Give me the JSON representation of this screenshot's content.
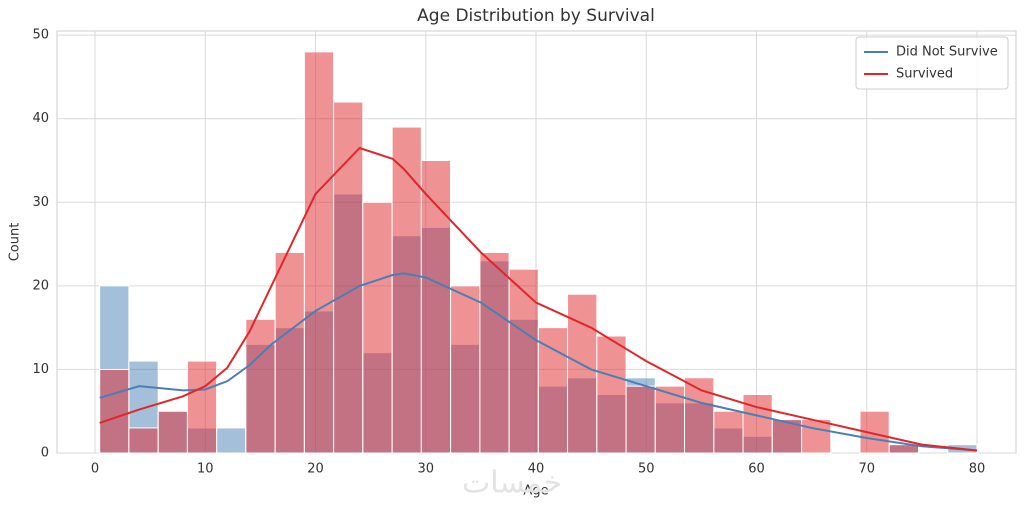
{
  "chart_data": {
    "type": "histogram",
    "title": "Age Distribution by Survival",
    "x_label": "Age",
    "y_label": "Count",
    "watermark": "خمسات",
    "bins": [
      0.42,
      3.07,
      5.73,
      8.38,
      11.03,
      13.68,
      16.34,
      18.99,
      21.64,
      24.29,
      26.95,
      29.6,
      32.25,
      34.91,
      37.56,
      40.21,
      42.86,
      45.52,
      48.17,
      50.82,
      53.47,
      56.13,
      58.78,
      61.43,
      64.09,
      66.74,
      69.39,
      72.04,
      74.7,
      77.35,
      80.0
    ],
    "kde_x": [
      0.42,
      4,
      8,
      10,
      12,
      14,
      16,
      20,
      24,
      27,
      28,
      30,
      35,
      40,
      45,
      50,
      55,
      60,
      65,
      70,
      75,
      80
    ],
    "series": [
      {
        "name": "Did Not Survive",
        "color": "#4a7fb5",
        "values": [
          20,
          11,
          5,
          3,
          3,
          13,
          15,
          17,
          31,
          12,
          26,
          27,
          13,
          23,
          16,
          8,
          9,
          7,
          9,
          6,
          6,
          3,
          2,
          4,
          0,
          0,
          0,
          1,
          0,
          1
        ],
        "kde": [
          6.6,
          8,
          7.5,
          7.6,
          8.6,
          10.5,
          13,
          17,
          20,
          21.3,
          21.5,
          21,
          18,
          13.5,
          10,
          8,
          6,
          4.5,
          3,
          1.8,
          0.8,
          0.3
        ]
      },
      {
        "name": "Survived",
        "color": "#e0262a",
        "values": [
          10,
          3,
          5,
          11,
          0,
          16,
          24,
          48,
          42,
          30,
          39,
          35,
          20,
          24,
          22,
          15,
          19,
          14,
          8,
          8,
          9,
          5,
          7,
          4,
          4,
          0,
          5,
          1,
          0,
          0
        ],
        "kde": [
          3.6,
          5.2,
          6.8,
          8,
          10.2,
          14.5,
          20,
          31,
          36.5,
          35.2,
          34,
          31,
          24,
          18,
          15,
          11,
          7.5,
          5.5,
          4,
          2.5,
          1,
          0.3
        ]
      }
    ],
    "xlim": [
      -3.45,
      83.54
    ],
    "ylim": [
      0,
      50.5
    ],
    "xticks": [
      0,
      10,
      20,
      30,
      40,
      50,
      60,
      70,
      80
    ],
    "yticks": [
      0,
      10,
      20,
      30,
      40,
      50
    ],
    "grid": true,
    "legend": "upper right"
  }
}
